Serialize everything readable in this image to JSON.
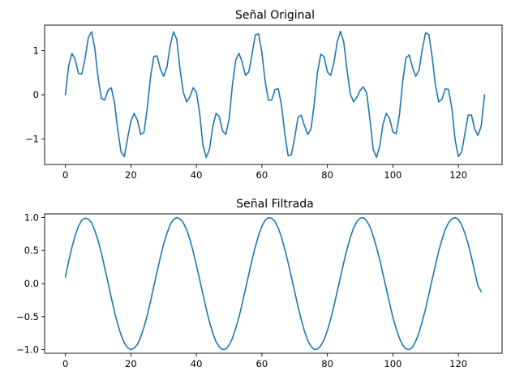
{
  "chart_data": [
    {
      "type": "line",
      "title": "Señal Original",
      "xlabel": "",
      "ylabel": "",
      "xlim": [
        -6.35,
        133.35
      ],
      "ylim": [
        -1.58,
        1.58
      ],
      "xticks": [
        0,
        20,
        40,
        60,
        80,
        100,
        120
      ],
      "yticks": [
        -1,
        0,
        1
      ],
      "ytick_labels": [
        "−1",
        "0",
        "1"
      ],
      "grid": false,
      "series": [
        {
          "color": "#1f77b4",
          "x_start": 0,
          "x_step": 1,
          "values": [
            0,
            0.66,
            0.94,
            0.8,
            0.48,
            0.47,
            0.82,
            1.3,
            1.43,
            1.04,
            0.38,
            -0.08,
            -0.12,
            0.1,
            0.16,
            -0.18,
            -0.8,
            -1.3,
            -1.4,
            -0.98,
            -0.6,
            -0.42,
            -0.58,
            -0.9,
            -0.85,
            -0.3,
            0.4,
            0.87,
            0.88,
            0.58,
            0.42,
            0.62,
            1.12,
            1.43,
            1.26,
            0.58,
            0.06,
            -0.16,
            -0.05,
            0.16,
            0.06,
            -0.42,
            -1.14,
            -1.42,
            -1.24,
            -0.72,
            -0.42,
            -0.5,
            -0.82,
            -0.9,
            -0.54,
            0.22,
            0.78,
            0.94,
            0.74,
            0.44,
            0.52,
            0.92,
            1.36,
            1.38,
            0.96,
            0.3,
            -0.12,
            -0.12,
            0.12,
            0.14,
            -0.24,
            -0.88,
            -1.38,
            -1.36,
            -0.98,
            -0.52,
            -0.46,
            -0.7,
            -0.9,
            -0.78,
            -0.2,
            0.52,
            0.92,
            0.86,
            0.52,
            0.44,
            0.72,
            1.2,
            1.44,
            1.2,
            0.56,
            0.02,
            -0.16,
            -0.06,
            0.1,
            0.18,
            0.04,
            -0.56,
            -1.24,
            -1.42,
            -1.16,
            -0.66,
            -0.42,
            -0.54,
            -0.84,
            -0.88,
            -0.46,
            0.3,
            0.84,
            0.9,
            0.62,
            0.42,
            0.56,
            1.04,
            1.41,
            1.36,
            0.86,
            0.22,
            -0.16,
            -0.1,
            0.14,
            0.12,
            -0.3,
            -1.02,
            -1.4,
            -1.3,
            -0.88,
            -0.46,
            -0.46,
            -0.78,
            -0.92,
            -0.7,
            0
          ]
        }
      ]
    },
    {
      "type": "line",
      "title": "Señal Filtrada",
      "xlabel": "",
      "ylabel": "",
      "xlim": [
        -6.35,
        133.35
      ],
      "ylim": [
        -1.055,
        1.055
      ],
      "xticks": [
        0,
        20,
        40,
        60,
        80,
        100,
        120
      ],
      "yticks": [
        -1.0,
        -0.5,
        0.0,
        0.5,
        1.0
      ],
      "ytick_labels": [
        "−1.0",
        "−0.5",
        "0.0",
        "0.5",
        "1.0"
      ],
      "grid": false,
      "series": [
        {
          "color": "#1f77b4",
          "x_start": 0,
          "x_step": 1,
          "values": [
            0.1,
            0.34,
            0.55,
            0.73,
            0.87,
            0.96,
            0.99,
            0.98,
            0.92,
            0.8,
            0.65,
            0.46,
            0.24,
            0.02,
            -0.21,
            -0.43,
            -0.62,
            -0.78,
            -0.9,
            -0.97,
            -1.0,
            -0.98,
            -0.92,
            -0.81,
            -0.66,
            -0.48,
            -0.27,
            -0.04,
            0.18,
            0.4,
            0.6,
            0.76,
            0.89,
            0.97,
            1.0,
            0.98,
            0.92,
            0.82,
            0.67,
            0.49,
            0.28,
            0.06,
            -0.16,
            -0.38,
            -0.58,
            -0.75,
            -0.88,
            -0.96,
            -1.0,
            -0.99,
            -0.93,
            -0.83,
            -0.68,
            -0.51,
            -0.3,
            -0.08,
            0.14,
            0.36,
            0.56,
            0.73,
            0.87,
            0.96,
            1.0,
            0.99,
            0.94,
            0.84,
            0.7,
            0.52,
            0.32,
            0.1,
            -0.12,
            -0.34,
            -0.54,
            -0.72,
            -0.86,
            -0.95,
            -1.0,
            -0.99,
            -0.94,
            -0.85,
            -0.71,
            -0.54,
            -0.34,
            -0.12,
            0.1,
            0.32,
            0.52,
            0.7,
            0.84,
            0.94,
            0.99,
            1.0,
            0.95,
            0.86,
            0.72,
            0.55,
            0.36,
            0.14,
            -0.08,
            -0.3,
            -0.51,
            -0.68,
            -0.83,
            -0.93,
            -0.99,
            -1.0,
            -0.96,
            -0.87,
            -0.74,
            -0.57,
            -0.38,
            -0.16,
            0.06,
            0.28,
            0.49,
            0.67,
            0.82,
            0.92,
            0.98,
            1.0,
            0.97,
            0.89,
            0.76,
            0.6,
            0.4,
            0.18,
            -0.04,
            -0.12
          ]
        }
      ]
    }
  ]
}
